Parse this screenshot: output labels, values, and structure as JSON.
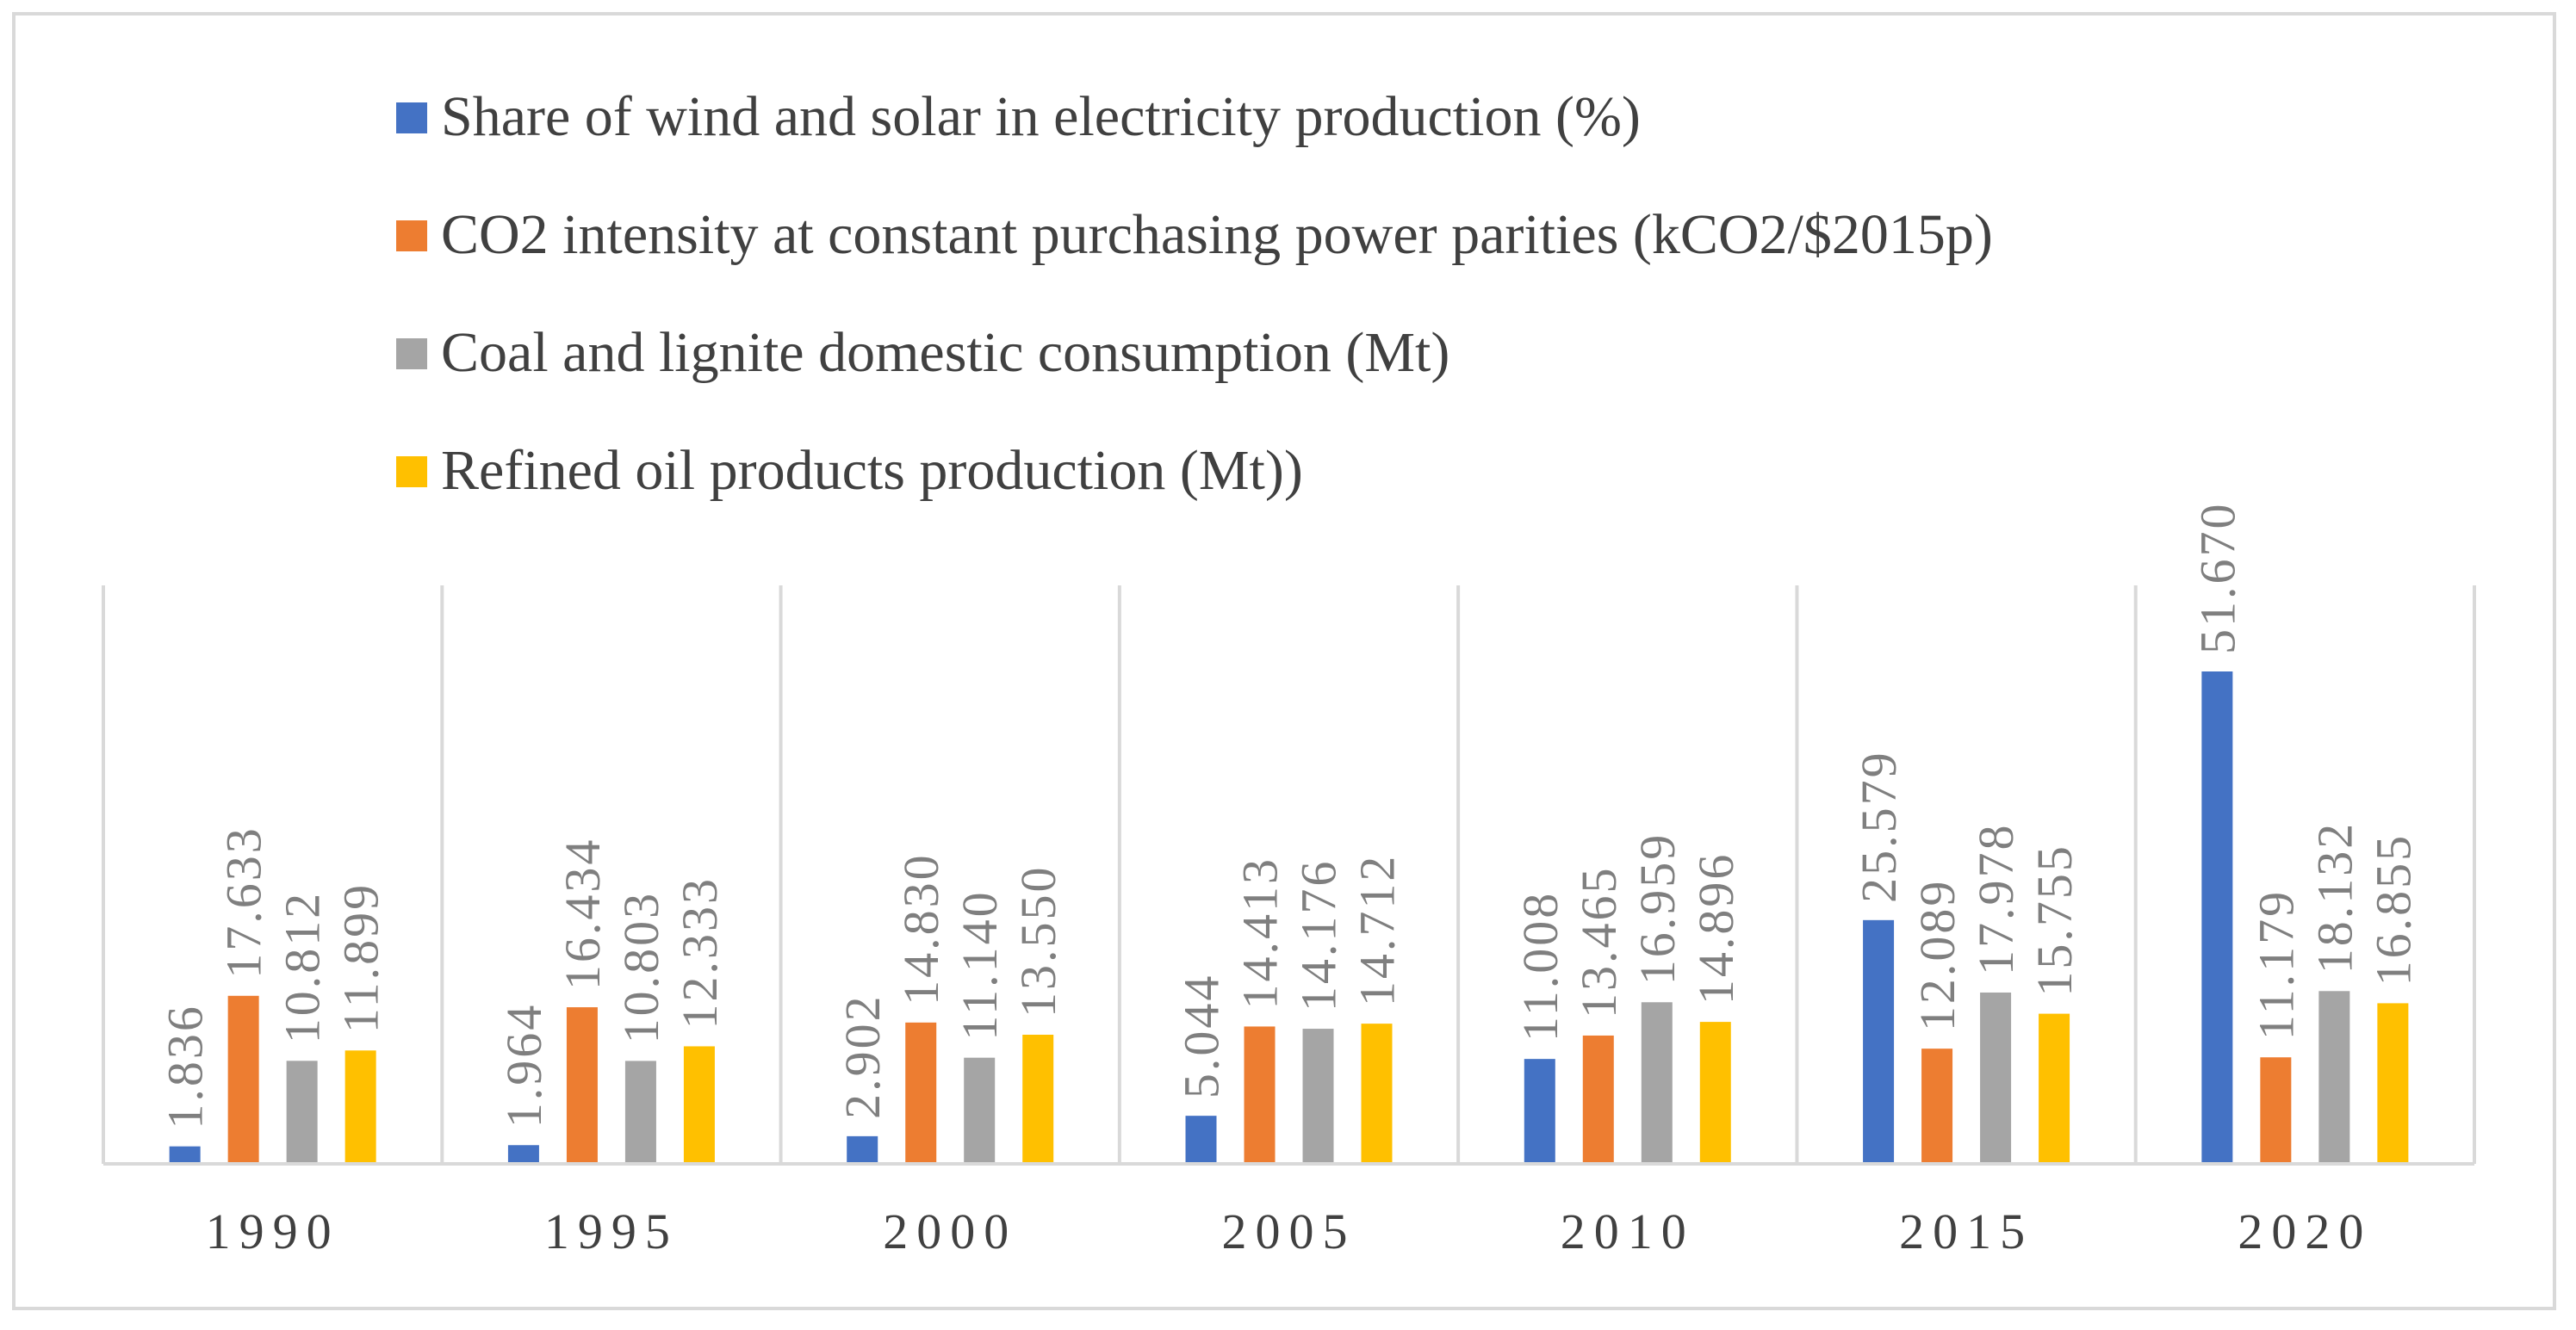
{
  "chart_data": {
    "type": "bar",
    "categories": [
      "1990",
      "1995",
      "2000",
      "2005",
      "2010",
      "2015",
      "2020"
    ],
    "series": [
      {
        "name": "Share of wind and solar in electricity production  (%)",
        "color": "#4472c4",
        "values": [
          1.836,
          1.964,
          2.902,
          5.044,
          11.008,
          25.579,
          51.67
        ],
        "labels": [
          "1.836",
          "1.964",
          "2.902",
          "5.044",
          "11.008",
          "25.579",
          "51.670"
        ]
      },
      {
        "name": "CO2 intensity at constant purchasing power parities (kCO2/$2015p)",
        "color": "#ed7d31",
        "values": [
          17.633,
          16.434,
          14.83,
          14.413,
          13.465,
          12.089,
          11.179
        ],
        "labels": [
          "17.633",
          "16.434",
          "14.830",
          "14.413",
          "13.465",
          "12.089",
          "11.179"
        ]
      },
      {
        "name": "Coal and lignite domestic consumption (Mt)",
        "color": "#a5a5a5",
        "values": [
          10.812,
          10.803,
          11.14,
          14.176,
          16.959,
          17.978,
          18.132
        ],
        "labels": [
          "10.812",
          "10.803",
          "11.140",
          "14.176",
          "16.959",
          "17.978",
          "18.132"
        ]
      },
      {
        "name": "Refined oil products production (Mt))",
        "color": "#ffc000",
        "values": [
          11.899,
          12.333,
          13.55,
          14.712,
          14.896,
          15.755,
          16.855
        ],
        "labels": [
          "11.899",
          "12.333",
          "13.550",
          "14.712",
          "14.896",
          "15.755",
          "16.855"
        ]
      }
    ],
    "ylim": [
      0,
      60
    ],
    "legend_position": "top",
    "gridlines": "vertical-category-separators"
  }
}
